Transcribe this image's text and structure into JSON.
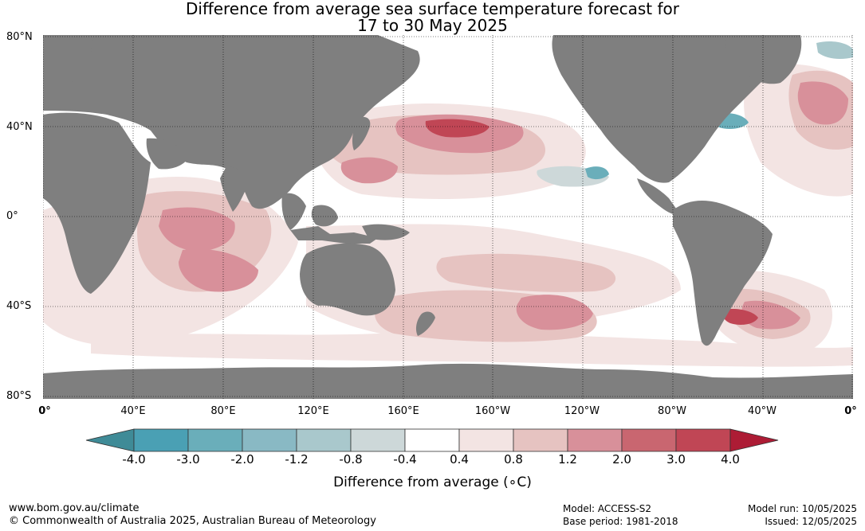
{
  "title": {
    "line1": "Difference from average sea surface temperature forecast for",
    "line2": "17 to 30 May 2025"
  },
  "lat_ticks": [
    "80°N",
    "40°N",
    "0°",
    "40°S",
    "80°S"
  ],
  "lon_ticks": [
    "0°",
    "40°E",
    "80°E",
    "120°E",
    "160°E",
    "160°W",
    "120°W",
    "80°W",
    "40°W",
    "0°"
  ],
  "colorbar": {
    "ticks": [
      "-4.0",
      "-3.0",
      "-2.0",
      "-1.2",
      "-0.8",
      "-0.4",
      "0.4",
      "0.8",
      "1.2",
      "2.0",
      "3.0",
      "4.0"
    ],
    "colors": [
      "#3f8b97",
      "#4aa0b4",
      "#6aaeba",
      "#89b9c4",
      "#a9c8cc",
      "#cdd8d9",
      "#ffffff",
      "#f3e4e3",
      "#e6c3c1",
      "#d8909a",
      "#c96670",
      "#c04655",
      "#ad1c35"
    ],
    "label": "Difference from average (∘C)"
  },
  "colors": {
    "land": "#7f7f7f",
    "ocean": "#ffffff",
    "warm": "#c96670",
    "cool": "#6aaeba"
  },
  "footer": {
    "site": "www.bom.gov.au/climate",
    "copyright": "© Commonwealth of Australia 2025, Australian Bureau of Meteorology",
    "model": "Model: ACCESS-S2",
    "base_period": "Base period: 1981-2018",
    "model_run": "Model run: 10/05/2025",
    "issued": "Issued: 12/05/2025"
  }
}
